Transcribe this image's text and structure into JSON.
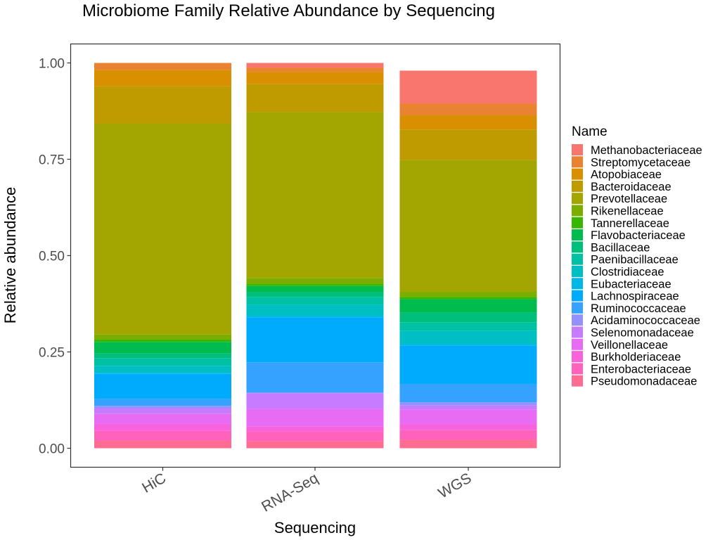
{
  "chart_data": {
    "type": "bar",
    "stacked": true,
    "title": "Microbiome Family Relative Abundance by Sequencing",
    "xlabel": "Sequencing",
    "ylabel": "Relative abundance",
    "ylim": [
      0,
      1
    ],
    "yticks": [
      "0.00",
      "0.25",
      "0.50",
      "0.75",
      "1.00"
    ],
    "ytick_values": [
      0,
      0.25,
      0.5,
      0.75,
      1.0
    ],
    "grid": false,
    "legend": {
      "title": "Name",
      "position": "right"
    },
    "categories": [
      "HiC",
      "RNA-Seq",
      "WGS"
    ],
    "series": [
      {
        "name": "Methanobacteriaceae",
        "color": "#F8766D",
        "values": [
          0.0,
          0.012,
          0.085
        ]
      },
      {
        "name": "Streptomycetaceae",
        "color": "#EA8331",
        "values": [
          0.018,
          0.011,
          0.031
        ]
      },
      {
        "name": "Atopobiaceae",
        "color": "#D89000",
        "values": [
          0.042,
          0.032,
          0.037
        ]
      },
      {
        "name": "Bacteroidaceae",
        "color": "#C09B00",
        "values": [
          0.097,
          0.072,
          0.079
        ]
      },
      {
        "name": "Prevotellaceae",
        "color": "#A3A500",
        "values": [
          0.548,
          0.431,
          0.342
        ]
      },
      {
        "name": "Rikenellaceae",
        "color": "#7CAE00",
        "values": [
          0.013,
          0.016,
          0.013
        ]
      },
      {
        "name": "Tannerellaceae",
        "color": "#39B600",
        "values": [
          0.006,
          0.005,
          0.006
        ]
      },
      {
        "name": "Flavobacteriaceae",
        "color": "#00BB4E",
        "values": [
          0.03,
          0.016,
          0.035
        ]
      },
      {
        "name": "Bacillaceae",
        "color": "#00BF7D",
        "values": [
          0.012,
          0.012,
          0.025
        ]
      },
      {
        "name": "Paenibacillaceae",
        "color": "#00C1A3",
        "values": [
          0.02,
          0.02,
          0.022
        ]
      },
      {
        "name": "Clostridiaceae",
        "color": "#00BFC4",
        "values": [
          0.018,
          0.03,
          0.035
        ]
      },
      {
        "name": "Eubacteriaceae",
        "color": "#00B8E5",
        "values": [
          0.003,
          0.003,
          0.003
        ]
      },
      {
        "name": "Lachnospiraceae",
        "color": "#00ABFD",
        "values": [
          0.065,
          0.117,
          0.1
        ]
      },
      {
        "name": "Ruminococcaceae",
        "color": "#35A2FF",
        "values": [
          0.018,
          0.078,
          0.048
        ]
      },
      {
        "name": "Acidaminococcaceae",
        "color": "#9590FF",
        "values": [
          0.006,
          0.003,
          0.008
        ]
      },
      {
        "name": "Selenomonadaceae",
        "color": "#C77CFF",
        "values": [
          0.015,
          0.04,
          0.011
        ]
      },
      {
        "name": "Veillonellaceae",
        "color": "#E76BF3",
        "values": [
          0.026,
          0.045,
          0.038
        ]
      },
      {
        "name": "Burkholderiaceae",
        "color": "#F962DD",
        "values": [
          0.018,
          0.013,
          0.015
        ]
      },
      {
        "name": "Enterobacteriaceae",
        "color": "#FF62BC",
        "values": [
          0.025,
          0.025,
          0.025
        ]
      },
      {
        "name": "Pseudomonadaceae",
        "color": "#FF6C91",
        "values": [
          0.02,
          0.019,
          0.022
        ]
      }
    ]
  }
}
